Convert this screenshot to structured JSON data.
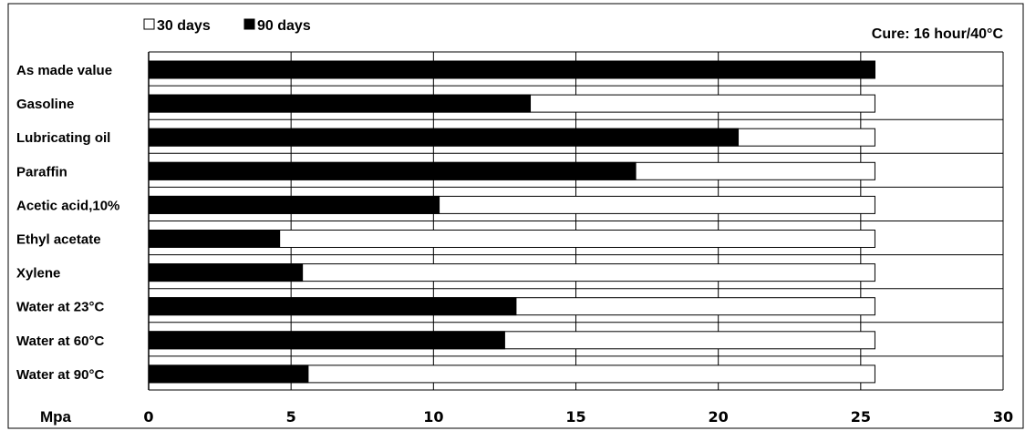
{
  "chart_data": {
    "type": "bar",
    "orientation": "horizontal",
    "categories": [
      "As made value",
      "Gasoline",
      "Lubricating oil",
      "Paraffin",
      "Acetic acid,10%",
      "Ethyl acetate",
      "Xylene",
      "Water at 23°C",
      "Water at 60°C",
      "Water at 90°C"
    ],
    "series": [
      {
        "name": "30 days",
        "color": "#ffffff",
        "values": [
          25.5,
          25.5,
          25.5,
          25.5,
          25.5,
          25.5,
          25.5,
          25.5,
          25.5,
          25.5
        ]
      },
      {
        "name": "90 days",
        "color": "#000000",
        "values": [
          25.5,
          13.4,
          20.7,
          17.1,
          10.2,
          4.6,
          5.4,
          12.9,
          12.5,
          5.6
        ]
      }
    ],
    "xlabel": "Mpa",
    "xlim": [
      0,
      30
    ],
    "xticks": [
      0,
      5,
      10,
      15,
      20,
      25,
      30
    ],
    "grid": true,
    "legend_position": "top-left",
    "annotation": "Cure: 16 hour/40°C"
  }
}
